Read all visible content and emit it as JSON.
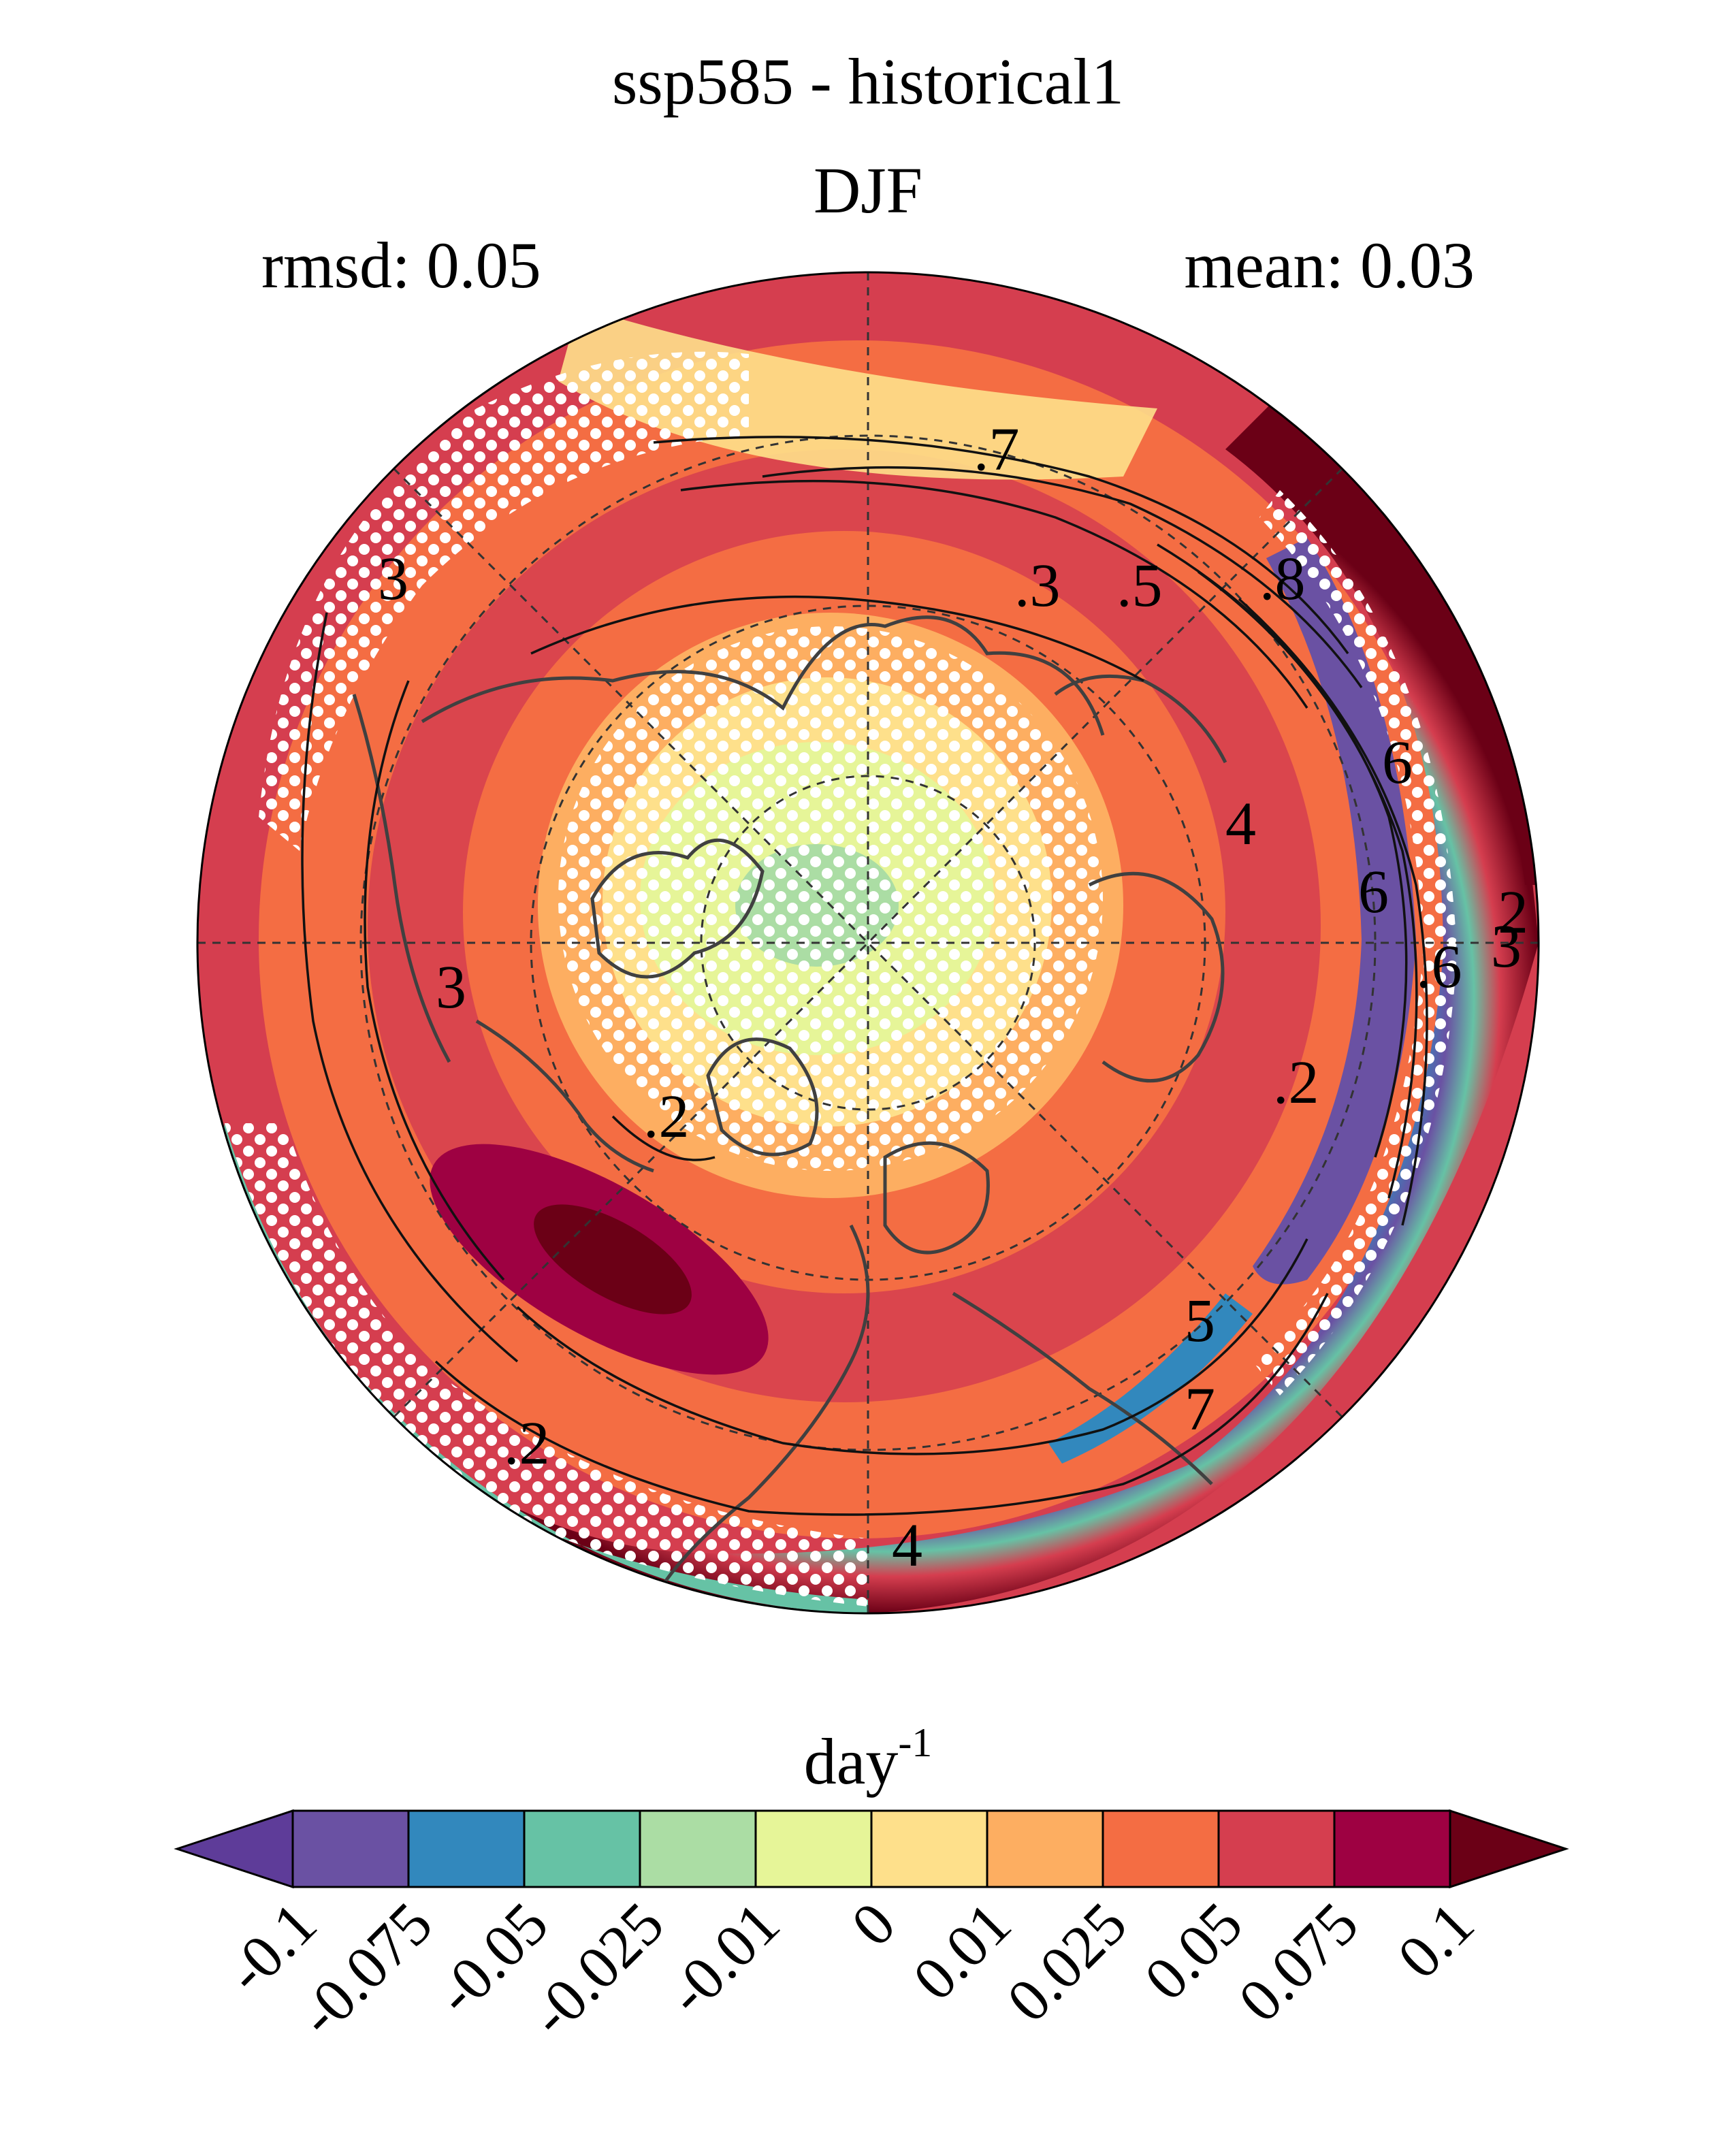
{
  "title": {
    "line1": "ssp585 - historical1",
    "line2": "DJF",
    "rmsd": "rmsd: 0.05",
    "mean": "mean: 0.03"
  },
  "colorbar": {
    "units_base": "day",
    "units_exponent": "-1",
    "levels": [
      "-0.1",
      "-0.075",
      "-0.05",
      "-0.025",
      "-0.01",
      "0",
      "0.01",
      "0.025",
      "0.05",
      "0.075",
      "0.1"
    ],
    "colors": [
      "#5e3c99",
      "#6a51a3",
      "#3288bd",
      "#66c2a5",
      "#abdda4",
      "#e6f598",
      "#fee08b",
      "#fdae61",
      "#f46d43",
      "#d53e4f",
      "#9e0142",
      "#6b0016"
    ]
  },
  "map": {
    "projection": "north polar stereographic",
    "contour_labels": [
      ".7",
      ".3",
      ".5",
      ".8",
      "3",
      "6",
      "4",
      "6",
      ".2",
      "3",
      ".2",
      ".2",
      "5",
      ".2",
      "4",
      "7",
      "2",
      "3",
      "4",
      ".6",
      "3"
    ],
    "stippling": "white dots mark significance"
  }
}
